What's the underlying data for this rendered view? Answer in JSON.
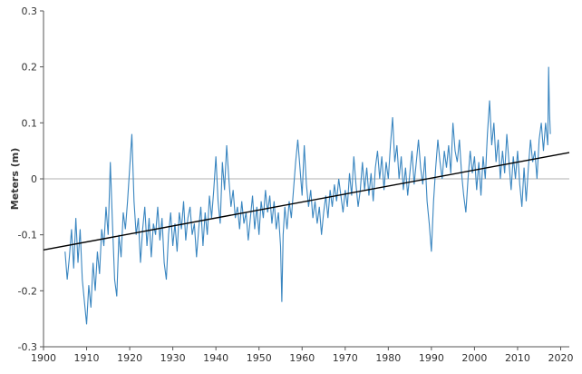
{
  "chart_data": {
    "type": "line",
    "title": "",
    "xlabel": "",
    "ylabel": "Meters (m)",
    "xlim": [
      1900,
      2022
    ],
    "ylim": [
      -0.3,
      0.3
    ],
    "x_ticks": [
      "1900",
      "1910",
      "1920",
      "1930",
      "1940",
      "1950",
      "1960",
      "1970",
      "1980",
      "1990",
      "2000",
      "2010",
      "2020"
    ],
    "y_ticks": [
      "0.3",
      "0.2",
      "0.1",
      "0",
      "-0.1",
      "-0.2",
      "-0.3"
    ],
    "zero_line": 0,
    "colors": {
      "series": "#3a86c0",
      "trend": "#000000",
      "axis": "#555555",
      "zero_line": "#999999"
    },
    "series": [
      {
        "values": [
          [
            1905.0,
            -0.13
          ],
          [
            1905.5,
            -0.18
          ],
          [
            1906.0,
            -0.14
          ],
          [
            1906.5,
            -0.09
          ],
          [
            1907.0,
            -0.16
          ],
          [
            1907.5,
            -0.07
          ],
          [
            1908.0,
            -0.15
          ],
          [
            1908.5,
            -0.09
          ],
          [
            1909.0,
            -0.18
          ],
          [
            1909.5,
            -0.22
          ],
          [
            1910.0,
            -0.26
          ],
          [
            1910.5,
            -0.19
          ],
          [
            1911.0,
            -0.23
          ],
          [
            1911.5,
            -0.15
          ],
          [
            1912.0,
            -0.2
          ],
          [
            1912.5,
            -0.13
          ],
          [
            1913.0,
            -0.17
          ],
          [
            1913.5,
            -0.09
          ],
          [
            1914.0,
            -0.12
          ],
          [
            1914.5,
            -0.05
          ],
          [
            1915.0,
            -0.1
          ],
          [
            1915.5,
            0.03
          ],
          [
            1916.0,
            -0.08
          ],
          [
            1916.5,
            -0.18
          ],
          [
            1917.0,
            -0.21
          ],
          [
            1917.5,
            -0.1
          ],
          [
            1918.0,
            -0.14
          ],
          [
            1918.5,
            -0.06
          ],
          [
            1919.0,
            -0.09
          ],
          [
            1919.5,
            -0.04
          ],
          [
            1920.0,
            0.02
          ],
          [
            1920.5,
            0.08
          ],
          [
            1921.0,
            -0.04
          ],
          [
            1921.5,
            -0.1
          ],
          [
            1922.0,
            -0.07
          ],
          [
            1922.5,
            -0.15
          ],
          [
            1923.0,
            -0.09
          ],
          [
            1923.5,
            -0.05
          ],
          [
            1924.0,
            -0.12
          ],
          [
            1924.5,
            -0.07
          ],
          [
            1925.0,
            -0.14
          ],
          [
            1925.5,
            -0.08
          ],
          [
            1926.0,
            -0.1
          ],
          [
            1926.5,
            -0.05
          ],
          [
            1927.0,
            -0.11
          ],
          [
            1927.5,
            -0.07
          ],
          [
            1928.0,
            -0.15
          ],
          [
            1928.5,
            -0.18
          ],
          [
            1929.0,
            -0.1
          ],
          [
            1929.5,
            -0.06
          ],
          [
            1930.0,
            -0.12
          ],
          [
            1930.5,
            -0.08
          ],
          [
            1931.0,
            -0.13
          ],
          [
            1931.5,
            -0.06
          ],
          [
            1932.0,
            -0.09
          ],
          [
            1932.5,
            -0.04
          ],
          [
            1933.0,
            -0.11
          ],
          [
            1933.5,
            -0.07
          ],
          [
            1934.0,
            -0.05
          ],
          [
            1934.5,
            -0.1
          ],
          [
            1935.0,
            -0.08
          ],
          [
            1935.5,
            -0.14
          ],
          [
            1936.0,
            -0.09
          ],
          [
            1936.5,
            -0.05
          ],
          [
            1937.0,
            -0.12
          ],
          [
            1937.5,
            -0.06
          ],
          [
            1938.0,
            -0.1
          ],
          [
            1938.5,
            -0.03
          ],
          [
            1939.0,
            -0.07
          ],
          [
            1939.5,
            -0.02
          ],
          [
            1940.0,
            0.04
          ],
          [
            1940.5,
            -0.04
          ],
          [
            1941.0,
            -0.08
          ],
          [
            1941.5,
            0.03
          ],
          [
            1942.0,
            -0.02
          ],
          [
            1942.5,
            0.06
          ],
          [
            1943.0,
            0.0
          ],
          [
            1943.5,
            -0.05
          ],
          [
            1944.0,
            -0.02
          ],
          [
            1944.5,
            -0.07
          ],
          [
            1945.0,
            -0.05
          ],
          [
            1945.5,
            -0.09
          ],
          [
            1946.0,
            -0.04
          ],
          [
            1946.5,
            -0.08
          ],
          [
            1947.0,
            -0.06
          ],
          [
            1947.5,
            -0.11
          ],
          [
            1948.0,
            -0.07
          ],
          [
            1948.5,
            -0.03
          ],
          [
            1949.0,
            -0.09
          ],
          [
            1949.5,
            -0.05
          ],
          [
            1950.0,
            -0.1
          ],
          [
            1950.5,
            -0.04
          ],
          [
            1951.0,
            -0.07
          ],
          [
            1951.5,
            -0.02
          ],
          [
            1952.0,
            -0.06
          ],
          [
            1952.5,
            -0.03
          ],
          [
            1953.0,
            -0.08
          ],
          [
            1953.5,
            -0.04
          ],
          [
            1954.0,
            -0.09
          ],
          [
            1954.5,
            -0.06
          ],
          [
            1955.0,
            -0.12
          ],
          [
            1955.3,
            -0.22
          ],
          [
            1955.6,
            -0.1
          ],
          [
            1956.0,
            -0.05
          ],
          [
            1956.5,
            -0.09
          ],
          [
            1957.0,
            -0.04
          ],
          [
            1957.5,
            -0.07
          ],
          [
            1958.0,
            -0.02
          ],
          [
            1958.5,
            0.03
          ],
          [
            1959.0,
            0.07
          ],
          [
            1959.5,
            0.02
          ],
          [
            1960.0,
            -0.03
          ],
          [
            1960.5,
            0.06
          ],
          [
            1961.0,
            -0.01
          ],
          [
            1961.5,
            -0.05
          ],
          [
            1962.0,
            -0.02
          ],
          [
            1962.5,
            -0.07
          ],
          [
            1963.0,
            -0.04
          ],
          [
            1963.5,
            -0.08
          ],
          [
            1964.0,
            -0.05
          ],
          [
            1964.5,
            -0.1
          ],
          [
            1965.0,
            -0.06
          ],
          [
            1965.5,
            -0.03
          ],
          [
            1966.0,
            -0.07
          ],
          [
            1966.5,
            -0.02
          ],
          [
            1967.0,
            -0.05
          ],
          [
            1967.5,
            -0.01
          ],
          [
            1968.0,
            -0.04
          ],
          [
            1968.5,
            0.0
          ],
          [
            1969.0,
            -0.03
          ],
          [
            1969.5,
            -0.06
          ],
          [
            1970.0,
            -0.02
          ],
          [
            1970.5,
            -0.05
          ],
          [
            1971.0,
            0.01
          ],
          [
            1971.5,
            -0.03
          ],
          [
            1972.0,
            0.04
          ],
          [
            1972.5,
            -0.01
          ],
          [
            1973.0,
            -0.05
          ],
          [
            1973.5,
            -0.02
          ],
          [
            1974.0,
            0.03
          ],
          [
            1974.5,
            -0.02
          ],
          [
            1975.0,
            0.02
          ],
          [
            1975.5,
            -0.03
          ],
          [
            1976.0,
            0.01
          ],
          [
            1976.5,
            -0.04
          ],
          [
            1977.0,
            0.02
          ],
          [
            1977.5,
            0.05
          ],
          [
            1978.0,
            0.0
          ],
          [
            1978.5,
            0.04
          ],
          [
            1979.0,
            -0.02
          ],
          [
            1979.5,
            0.03
          ],
          [
            1980.0,
            0.0
          ],
          [
            1980.5,
            0.06
          ],
          [
            1981.0,
            0.11
          ],
          [
            1981.5,
            0.03
          ],
          [
            1982.0,
            0.06
          ],
          [
            1982.5,
            0.0
          ],
          [
            1983.0,
            0.04
          ],
          [
            1983.5,
            -0.02
          ],
          [
            1984.0,
            0.02
          ],
          [
            1984.5,
            -0.03
          ],
          [
            1985.0,
            0.01
          ],
          [
            1985.5,
            0.05
          ],
          [
            1986.0,
            -0.01
          ],
          [
            1986.5,
            0.03
          ],
          [
            1987.0,
            0.07
          ],
          [
            1987.5,
            0.02
          ],
          [
            1988.0,
            -0.01
          ],
          [
            1988.5,
            0.04
          ],
          [
            1989.0,
            -0.04
          ],
          [
            1989.5,
            -0.08
          ],
          [
            1990.0,
            -0.13
          ],
          [
            1990.5,
            -0.04
          ],
          [
            1991.0,
            0.02
          ],
          [
            1991.5,
            0.07
          ],
          [
            1992.0,
            0.03
          ],
          [
            1992.5,
            0.0
          ],
          [
            1993.0,
            0.05
          ],
          [
            1993.5,
            0.02
          ],
          [
            1994.0,
            0.06
          ],
          [
            1994.5,
            0.01
          ],
          [
            1995.0,
            0.1
          ],
          [
            1995.5,
            0.05
          ],
          [
            1996.0,
            0.03
          ],
          [
            1996.5,
            0.07
          ],
          [
            1997.0,
            0.01
          ],
          [
            1997.5,
            -0.03
          ],
          [
            1998.0,
            -0.06
          ],
          [
            1998.5,
            0.0
          ],
          [
            1999.0,
            0.05
          ],
          [
            1999.5,
            0.01
          ],
          [
            2000.0,
            0.04
          ],
          [
            2000.5,
            -0.02
          ],
          [
            2001.0,
            0.03
          ],
          [
            2001.5,
            -0.03
          ],
          [
            2002.0,
            0.04
          ],
          [
            2002.5,
            0.0
          ],
          [
            2003.0,
            0.08
          ],
          [
            2003.5,
            0.14
          ],
          [
            2004.0,
            0.06
          ],
          [
            2004.5,
            0.1
          ],
          [
            2005.0,
            0.03
          ],
          [
            2005.5,
            0.07
          ],
          [
            2006.0,
            0.0
          ],
          [
            2006.5,
            0.05
          ],
          [
            2007.0,
            0.01
          ],
          [
            2007.5,
            0.08
          ],
          [
            2008.0,
            0.03
          ],
          [
            2008.5,
            -0.02
          ],
          [
            2009.0,
            0.04
          ],
          [
            2009.5,
            0.0
          ],
          [
            2010.0,
            0.05
          ],
          [
            2010.5,
            -0.01
          ],
          [
            2011.0,
            -0.05
          ],
          [
            2011.5,
            0.02
          ],
          [
            2012.0,
            -0.04
          ],
          [
            2012.5,
            0.02
          ],
          [
            2013.0,
            0.07
          ],
          [
            2013.5,
            0.03
          ],
          [
            2014.0,
            0.05
          ],
          [
            2014.5,
            0.0
          ],
          [
            2015.0,
            0.07
          ],
          [
            2015.5,
            0.1
          ],
          [
            2016.0,
            0.05
          ],
          [
            2016.5,
            0.1
          ],
          [
            2017.0,
            0.06
          ],
          [
            2017.2,
            0.2
          ],
          [
            2017.4,
            0.12
          ],
          [
            2017.6,
            0.08
          ]
        ]
      }
    ],
    "trend_line": [
      [
        1900,
        -0.127
      ],
      [
        2022,
        0.047
      ]
    ]
  }
}
